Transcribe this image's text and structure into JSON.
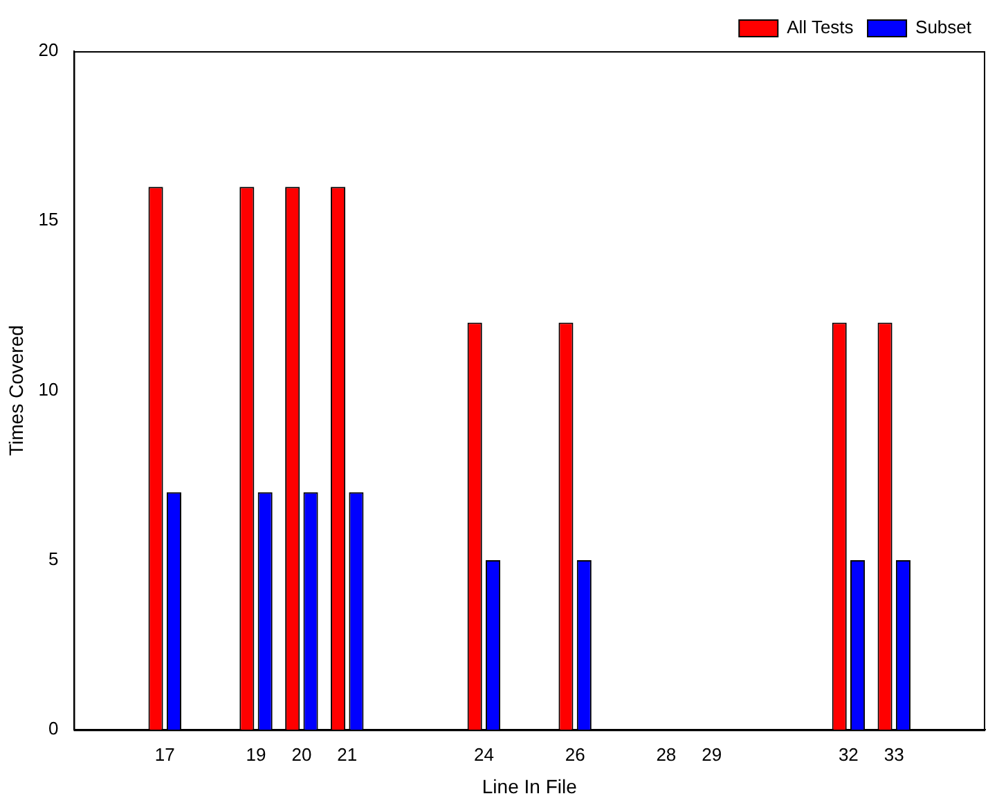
{
  "chart_data": {
    "type": "bar",
    "xlabel": "Line In File",
    "ylabel": "Times Covered",
    "x": [
      17,
      19,
      20,
      21,
      24,
      26,
      28,
      29,
      32,
      33
    ],
    "series": [
      {
        "name": "All Tests",
        "color": "#ff0000",
        "values": [
          16,
          16,
          16,
          16,
          12,
          12,
          0,
          0,
          12,
          12
        ]
      },
      {
        "name": "Subset",
        "color": "#0000ff",
        "values": [
          7,
          7,
          7,
          7,
          5,
          5,
          0,
          0,
          5,
          5
        ]
      }
    ],
    "xlim": [
      15,
      35
    ],
    "xticks": [
      17,
      19,
      20,
      21,
      24,
      26,
      28,
      29,
      32,
      33
    ],
    "ylim": [
      0,
      20
    ],
    "yticks": [
      0,
      5,
      10,
      15,
      20
    ],
    "grid": false,
    "legend": "top right"
  }
}
